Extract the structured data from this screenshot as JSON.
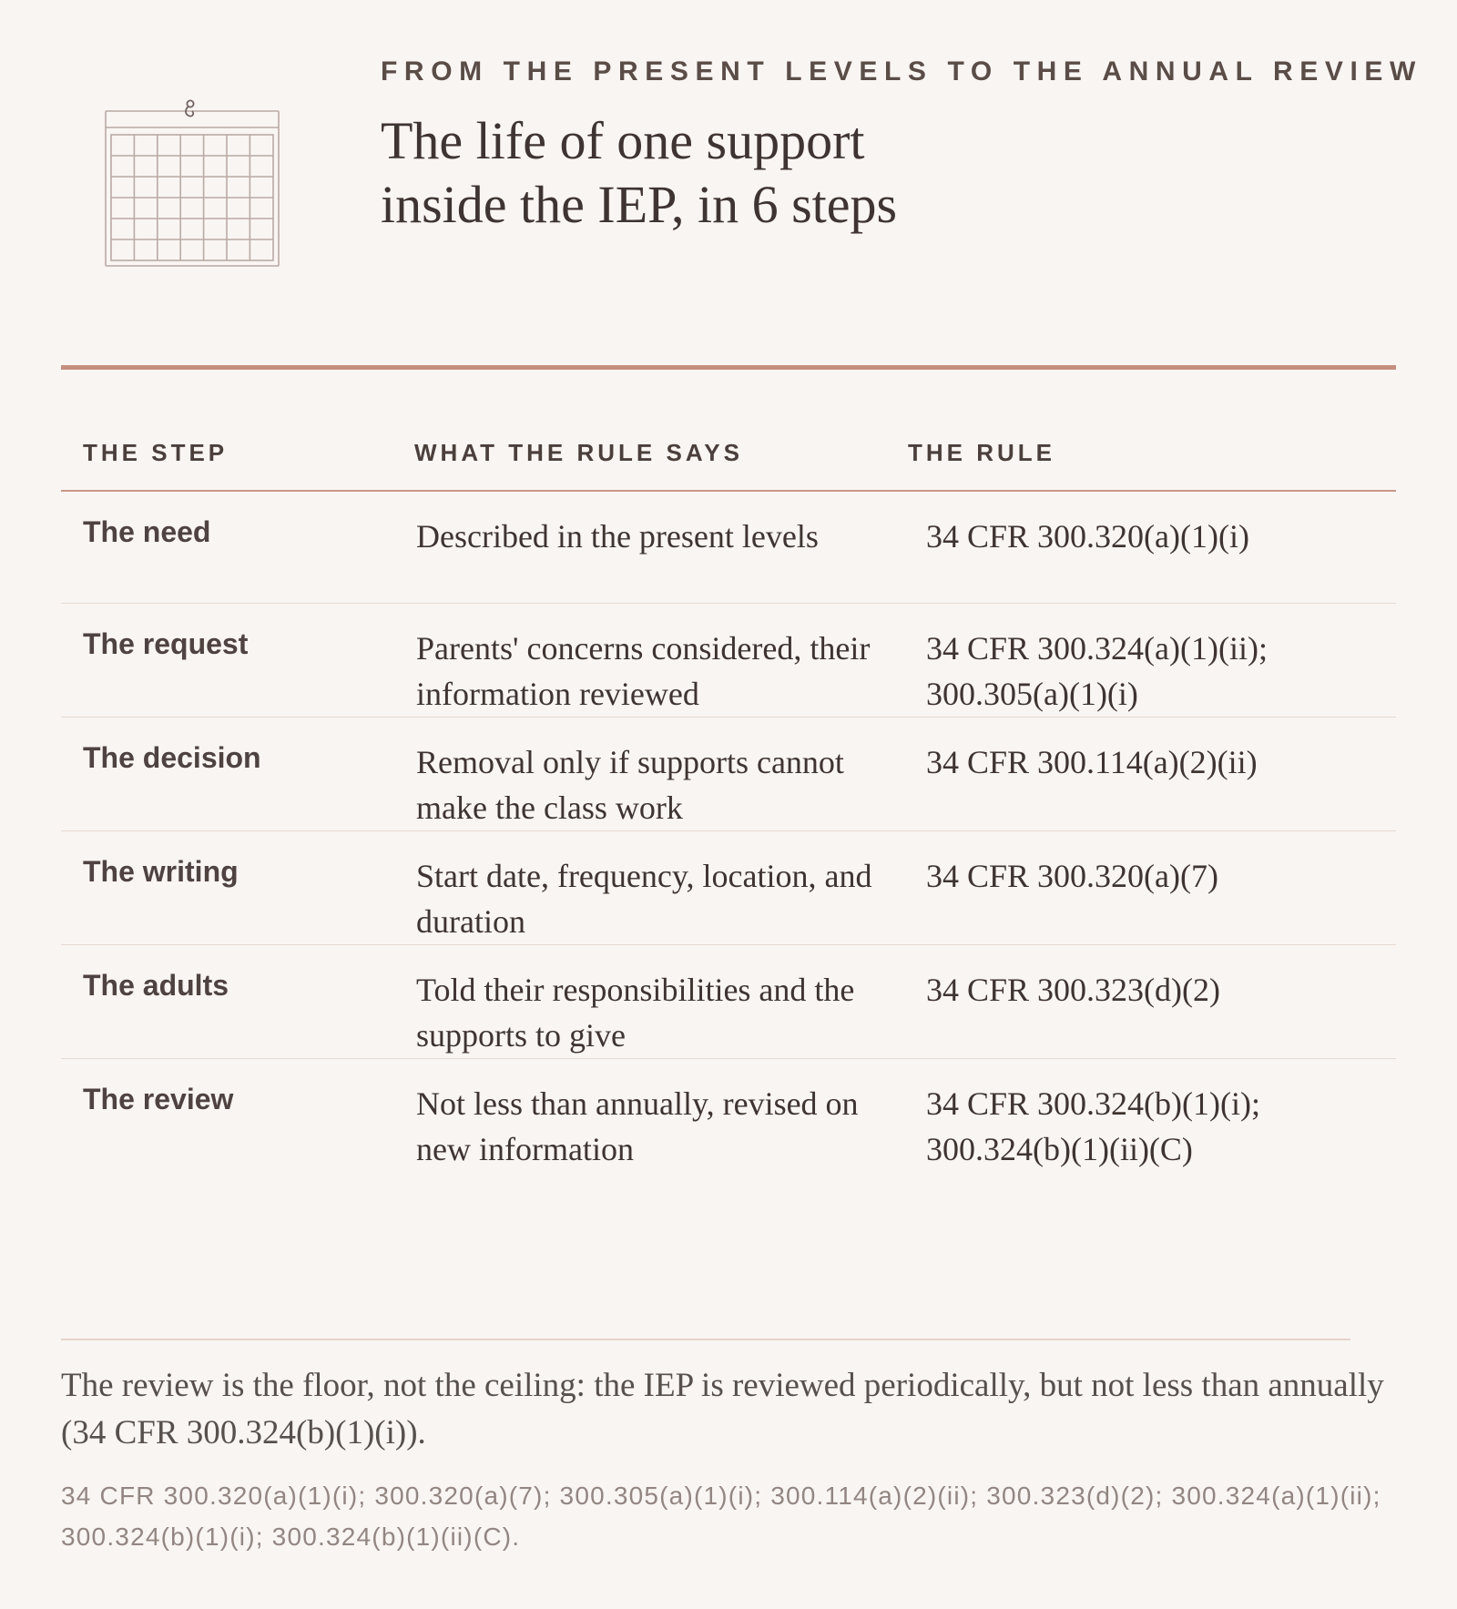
{
  "header": {
    "eyebrow": "FROM THE PRESENT LEVELS TO THE ANNUAL REVIEW",
    "title_line_1": "The life of one support",
    "title_line_2": "inside the IEP, in 6 steps",
    "icon": "calendar-icon"
  },
  "table": {
    "columns": [
      "THE STEP",
      "WHAT THE RULE SAYS",
      "THE RULE"
    ],
    "rows": [
      {
        "step": "The need",
        "says": "Described in the present levels",
        "rule": "34 CFR 300.320(a)(1)(i)"
      },
      {
        "step": "The request",
        "says": "Parents' concerns considered, their information reviewed",
        "rule": "34 CFR 300.324(a)(1)(ii); 300.305(a)(1)(i)"
      },
      {
        "step": "The decision",
        "says": "Removal only if supports cannot make the class work",
        "rule": "34 CFR 300.114(a)(2)(ii)"
      },
      {
        "step": "The writing",
        "says": "Start date, frequency, location, and duration",
        "rule": "34 CFR 300.320(a)(7)"
      },
      {
        "step": "The adults",
        "says": "Told their responsibilities and the supports to give",
        "rule": "34 CFR 300.323(d)(2)"
      },
      {
        "step": "The review",
        "says": "Not less than annually, revised on new information",
        "rule": "34 CFR 300.324(b)(1)(i); 300.324(b)(1)(ii)(C)"
      }
    ]
  },
  "note": "The review is the floor, not the ceiling: the IEP is reviewed periodically, but not less than annually (34 CFR 300.324(b)(1)(i)).",
  "sources": "34 CFR 300.320(a)(1)(i); 300.320(a)(7); 300.305(a)(1)(i); 300.114(a)(2)(ii); 300.323(d)(2); 300.324(a)(1)(ii); 300.324(b)(1)(i); 300.324(b)(1)(ii)(C).",
  "colors": {
    "background": "#f9f5f2",
    "accent_rule": "#c58f7f",
    "text": "#3e3431",
    "muted_text": "#928682"
  }
}
